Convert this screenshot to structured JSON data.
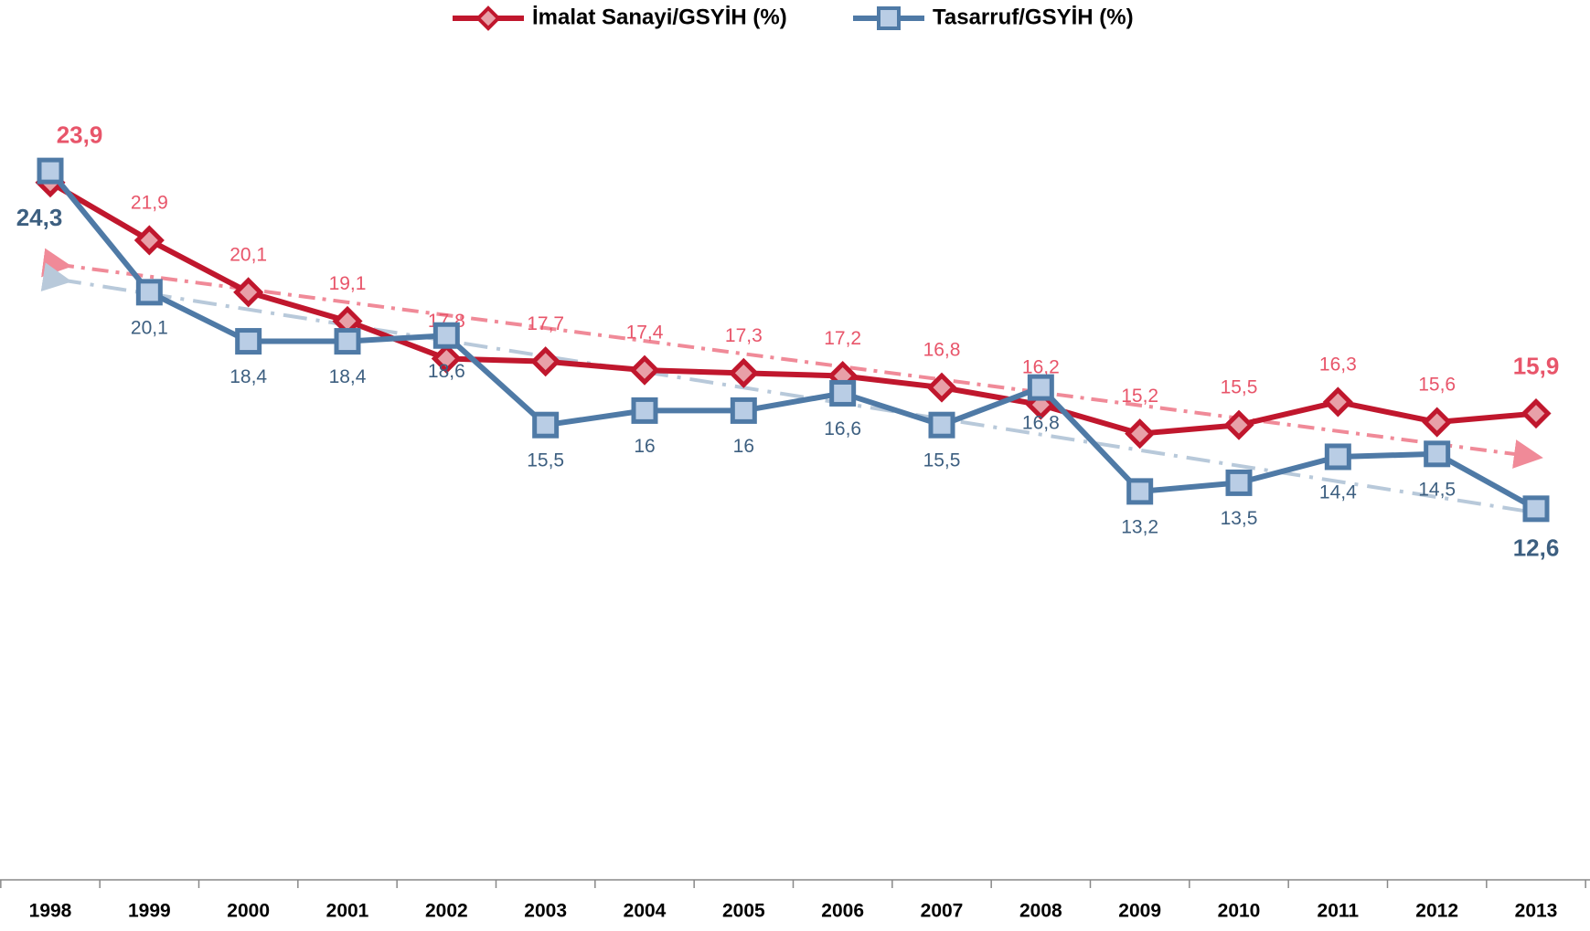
{
  "chart_data": {
    "type": "line",
    "categories": [
      "1998",
      "1999",
      "2000",
      "2001",
      "2002",
      "2003",
      "2004",
      "2005",
      "2006",
      "2007",
      "2008",
      "2009",
      "2010",
      "2011",
      "2012",
      "2013"
    ],
    "series": [
      {
        "name": "İmalat Sanayi/GSYİH (%)",
        "color": "#c0172d",
        "label_color": "#e8556a",
        "marker": "diamond",
        "values": [
          23.9,
          21.9,
          20.1,
          19.1,
          17.8,
          17.7,
          17.4,
          17.3,
          17.2,
          16.8,
          16.2,
          15.2,
          15.5,
          16.3,
          15.6,
          15.9
        ],
        "value_labels": [
          "23,9",
          "21,9",
          "20,1",
          "19,1",
          "17,8",
          "17,7",
          "17,4",
          "17,3",
          "17,2",
          "16,8",
          "16,2",
          "15,2",
          "15,5",
          "16,3",
          "15,6",
          "15,9"
        ]
      },
      {
        "name": "Tasarruf/GSYİH (%)",
        "color": "#4f7aa6",
        "label_color": "#3d5f80",
        "marker": "square",
        "values": [
          24.3,
          20.1,
          18.4,
          18.4,
          18.6,
          15.5,
          16,
          16,
          16.6,
          15.5,
          16.8,
          13.2,
          13.5,
          14.4,
          14.5,
          12.6
        ],
        "value_labels": [
          "24,3",
          "20,1",
          "18,4",
          "18,4",
          "18,6",
          "15,5",
          "16",
          "16",
          "16,6",
          "15,5",
          "16,8",
          "13,2",
          "13,5",
          "14,4",
          "14,5",
          "12,6"
        ]
      }
    ],
    "ylim": [
      0,
      30
    ],
    "trendline": true,
    "legend": "top"
  }
}
